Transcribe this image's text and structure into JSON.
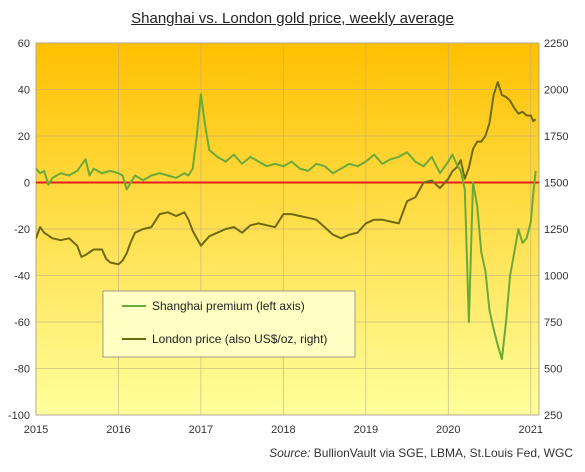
{
  "chart_data": {
    "type": "line",
    "title": "Shanghai vs. London gold price, weekly average",
    "source_label": "Source:",
    "source_text": "BullionVault via SGE, LBMA, St.Louis Fed, WGC",
    "x_ticks": [
      "2015",
      "2016",
      "2017",
      "2018",
      "2019",
      "2020",
      "2021"
    ],
    "xlim": [
      2015,
      2021.1
    ],
    "left_axis": {
      "ylim": [
        -100,
        60
      ],
      "ticks": [
        "60",
        "40",
        "20",
        "0",
        "-20",
        "-40",
        "-60",
        "-80",
        "-100"
      ]
    },
    "right_axis": {
      "ylim": [
        250,
        2250
      ],
      "ticks": [
        "2250",
        "2000",
        "1750",
        "1500",
        "1250",
        "1000",
        "750",
        "500",
        "250"
      ]
    },
    "zero_line": 0,
    "legend": {
      "placement": "center-left",
      "entries": [
        "Shanghai premium (left axis)",
        "London price (also US$/oz, right)"
      ]
    },
    "colors": {
      "premium": "#6aaa3a",
      "london": "#6e6a10",
      "zero_line": "#e41e1e",
      "bg_top": "#ffc000",
      "bg_bottom": "#ffff9c"
    },
    "series": [
      {
        "name": "Shanghai premium (left axis)",
        "axis": "left",
        "x": [
          2015.0,
          2015.05,
          2015.1,
          2015.15,
          2015.2,
          2015.3,
          2015.4,
          2015.5,
          2015.6,
          2015.65,
          2015.7,
          2015.8,
          2015.9,
          2016.0,
          2016.05,
          2016.1,
          2016.2,
          2016.3,
          2016.4,
          2016.5,
          2016.6,
          2016.7,
          2016.8,
          2016.85,
          2016.9,
          2016.95,
          2017.0,
          2017.05,
          2017.1,
          2017.2,
          2017.3,
          2017.4,
          2017.5,
          2017.6,
          2017.7,
          2017.8,
          2017.9,
          2018.0,
          2018.1,
          2018.2,
          2018.3,
          2018.4,
          2018.5,
          2018.6,
          2018.7,
          2018.8,
          2018.9,
          2019.0,
          2019.1,
          2019.2,
          2019.3,
          2019.4,
          2019.5,
          2019.6,
          2019.7,
          2019.8,
          2019.9,
          2020.0,
          2020.05,
          2020.1,
          2020.15,
          2020.2,
          2020.25,
          2020.3,
          2020.35,
          2020.4,
          2020.45,
          2020.5,
          2020.55,
          2020.6,
          2020.65,
          2020.7,
          2020.75,
          2020.8,
          2020.85,
          2020.9,
          2020.95,
          2021.0,
          2021.03,
          2021.06
        ],
        "values": [
          6,
          4,
          5,
          -1,
          2,
          4,
          3,
          5,
          10,
          3,
          6,
          4,
          5,
          4,
          3,
          -3,
          3,
          1,
          3,
          4,
          3,
          2,
          4,
          3,
          6,
          20,
          38,
          25,
          14,
          11,
          9,
          12,
          8,
          11,
          9,
          7,
          8,
          7,
          9,
          6,
          5,
          8,
          7,
          4,
          6,
          8,
          7,
          9,
          12,
          8,
          10,
          11,
          13,
          9,
          7,
          11,
          4,
          9,
          12,
          8,
          5,
          -3,
          -60,
          0,
          -10,
          -30,
          -38,
          -55,
          -63,
          -70,
          -76,
          -60,
          -40,
          -30,
          -20,
          -26,
          -24,
          -17,
          -5,
          5
        ]
      },
      {
        "name": "London price (also US$/oz, right)",
        "axis": "right",
        "x": [
          2015.0,
          2015.05,
          2015.1,
          2015.2,
          2015.3,
          2015.4,
          2015.5,
          2015.55,
          2015.6,
          2015.7,
          2015.8,
          2015.85,
          2015.9,
          2016.0,
          2016.05,
          2016.1,
          2016.15,
          2016.2,
          2016.3,
          2016.4,
          2016.5,
          2016.6,
          2016.7,
          2016.8,
          2016.85,
          2016.9,
          2017.0,
          2017.1,
          2017.2,
          2017.3,
          2017.4,
          2017.5,
          2017.6,
          2017.7,
          2017.8,
          2017.9,
          2018.0,
          2018.1,
          2018.2,
          2018.3,
          2018.4,
          2018.5,
          2018.6,
          2018.7,
          2018.8,
          2018.9,
          2019.0,
          2019.1,
          2019.2,
          2019.3,
          2019.4,
          2019.5,
          2019.6,
          2019.7,
          2019.8,
          2019.9,
          2020.0,
          2020.05,
          2020.1,
          2020.15,
          2020.2,
          2020.25,
          2020.3,
          2020.35,
          2020.4,
          2020.45,
          2020.5,
          2020.55,
          2020.6,
          2020.65,
          2020.7,
          2020.75,
          2020.8,
          2020.85,
          2020.9,
          2020.95,
          2021.0,
          2021.03,
          2021.06
        ],
        "values": [
          1200,
          1260,
          1230,
          1200,
          1190,
          1200,
          1160,
          1100,
          1110,
          1140,
          1140,
          1090,
          1070,
          1060,
          1080,
          1120,
          1180,
          1230,
          1250,
          1260,
          1330,
          1340,
          1320,
          1340,
          1300,
          1240,
          1160,
          1210,
          1230,
          1250,
          1260,
          1230,
          1270,
          1280,
          1270,
          1260,
          1330,
          1330,
          1320,
          1310,
          1300,
          1260,
          1220,
          1200,
          1220,
          1230,
          1280,
          1300,
          1300,
          1290,
          1280,
          1400,
          1420,
          1500,
          1510,
          1470,
          1520,
          1560,
          1580,
          1620,
          1520,
          1580,
          1680,
          1720,
          1720,
          1750,
          1820,
          1970,
          2040,
          1970,
          1960,
          1940,
          1900,
          1870,
          1880,
          1860,
          1860,
          1830,
          1840
        ]
      }
    ]
  }
}
